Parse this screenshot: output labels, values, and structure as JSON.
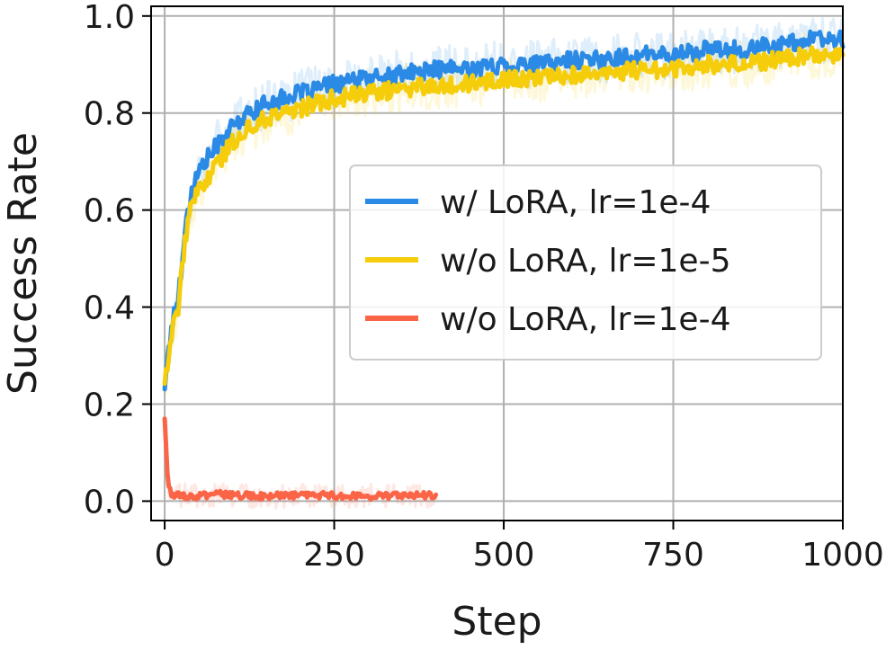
{
  "chart_data": {
    "type": "line",
    "title": "",
    "xlabel": "Step",
    "ylabel": "Success Rate",
    "xlim": [
      -20,
      1000
    ],
    "ylim": [
      -0.04,
      1.02
    ],
    "grid": true,
    "legend_position": "center-right",
    "x_ticks": [
      0,
      250,
      500,
      750,
      1000
    ],
    "x_tick_labels": [
      "0",
      "250",
      "500",
      "750",
      "1000"
    ],
    "y_ticks": [
      0.0,
      0.2,
      0.4,
      0.6,
      0.8,
      1.0
    ],
    "y_tick_labels": [
      "0.0",
      "0.2",
      "0.4",
      "0.6",
      "0.8",
      "1.0"
    ],
    "series": [
      {
        "name": "w/ LoRA, lr=1e-4",
        "color": "#2b8ae6",
        "x": [
          0,
          10,
          20,
          30,
          40,
          50,
          60,
          80,
          100,
          125,
          150,
          175,
          200,
          250,
          300,
          350,
          400,
          450,
          500,
          550,
          600,
          650,
          700,
          750,
          800,
          850,
          900,
          950,
          1000
        ],
        "y": [
          0.24,
          0.36,
          0.42,
          0.56,
          0.64,
          0.68,
          0.7,
          0.74,
          0.77,
          0.8,
          0.82,
          0.83,
          0.84,
          0.86,
          0.87,
          0.88,
          0.89,
          0.89,
          0.9,
          0.9,
          0.91,
          0.91,
          0.92,
          0.92,
          0.93,
          0.93,
          0.94,
          0.95,
          0.95
        ]
      },
      {
        "name": "w/o LoRA, lr=1e-5",
        "color": "#f5cd0a",
        "x": [
          0,
          10,
          20,
          30,
          40,
          50,
          60,
          80,
          100,
          125,
          150,
          175,
          200,
          250,
          300,
          350,
          400,
          450,
          500,
          550,
          600,
          650,
          700,
          750,
          800,
          850,
          900,
          950,
          1000
        ],
        "y": [
          0.25,
          0.34,
          0.4,
          0.54,
          0.61,
          0.64,
          0.66,
          0.7,
          0.74,
          0.77,
          0.79,
          0.8,
          0.81,
          0.83,
          0.84,
          0.85,
          0.86,
          0.86,
          0.87,
          0.87,
          0.88,
          0.88,
          0.89,
          0.89,
          0.9,
          0.9,
          0.91,
          0.92,
          0.92
        ]
      },
      {
        "name": "w/o LoRA, lr=1e-4",
        "color": "#fa6447",
        "x": [
          0,
          5,
          10,
          25,
          50,
          75,
          100,
          150,
          200,
          250,
          300,
          350,
          400
        ],
        "y": [
          0.17,
          0.03,
          0.015,
          0.012,
          0.01,
          0.015,
          0.012,
          0.01,
          0.012,
          0.012,
          0.01,
          0.012,
          0.012
        ]
      }
    ]
  }
}
